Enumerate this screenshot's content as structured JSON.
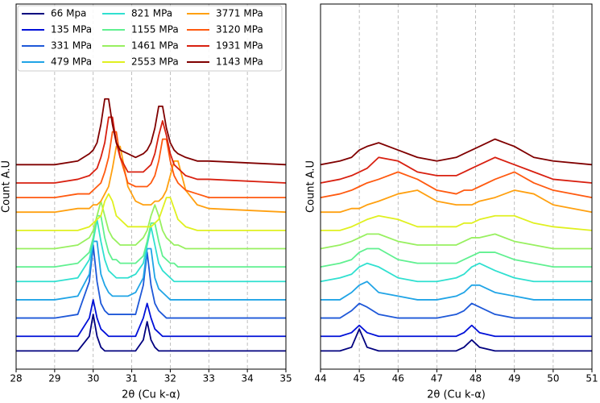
{
  "chart_data": [
    {
      "type": "line",
      "xlabel": "2θ (Cu k-α)",
      "ylabel": "Count A.U",
      "x": [
        28,
        29,
        29.6,
        29.9,
        30.0,
        30.1,
        30.2,
        30.3,
        30.4,
        30.5,
        30.6,
        30.7,
        30.9,
        31.1,
        31.3,
        31.4,
        31.5,
        31.6,
        31.7,
        31.8,
        31.9,
        32.0,
        32.1,
        32.2,
        32.4,
        32.7,
        33,
        35
      ],
      "xlim": [
        28,
        35
      ],
      "xticks": [
        28,
        29,
        30,
        31,
        32,
        33,
        34,
        35
      ],
      "ylim": [
        0,
        100
      ],
      "grid": "x",
      "legend": "upper left",
      "legend_columns": 3,
      "series": [
        {
          "name": "66 Mpa",
          "color": "#00007f",
          "values": [
            5,
            5,
            5,
            9,
            15,
            9,
            6,
            5,
            5,
            5,
            5,
            5,
            5,
            5,
            8,
            13,
            8,
            6,
            5,
            5,
            5,
            5,
            5,
            5,
            5,
            5,
            5,
            5
          ]
        },
        {
          "name": "135 MPa",
          "color": "#0010d8",
          "values": [
            9,
            9,
            9,
            14,
            19,
            14,
            11,
            10,
            9,
            9,
            9,
            9,
            9,
            9,
            14,
            18,
            14,
            11,
            10,
            9,
            9,
            9,
            9,
            9,
            9,
            9,
            9,
            9
          ]
        },
        {
          "name": "331 MPa",
          "color": "#1e58d8",
          "values": [
            14,
            14,
            15,
            24,
            34,
            24,
            18,
            16,
            15,
            15,
            15,
            15,
            15,
            15,
            23,
            32,
            23,
            18,
            16,
            15,
            14,
            14,
            14,
            14,
            14,
            14,
            14,
            14
          ]
        },
        {
          "name": "479 MPa",
          "color": "#20a4e6",
          "values": [
            19,
            19,
            20,
            26,
            35,
            35,
            26,
            23,
            21,
            20,
            20,
            20,
            20,
            21,
            25,
            33,
            33,
            25,
            22,
            21,
            20,
            19,
            19,
            19,
            19,
            19,
            19,
            19
          ]
        },
        {
          "name": "821 MPa",
          "color": "#30e0d0",
          "values": [
            24,
            24,
            25,
            30,
            35,
            41,
            35,
            30,
            27,
            26,
            25,
            25,
            25,
            26,
            29,
            34,
            39,
            34,
            29,
            27,
            26,
            25,
            24,
            24,
            24,
            24,
            24,
            24
          ]
        },
        {
          "name": "1155 MPa",
          "color": "#60f090",
          "values": [
            28,
            28,
            29,
            32,
            36,
            42,
            42,
            36,
            32,
            30,
            30,
            29,
            29,
            29,
            31,
            35,
            40,
            40,
            35,
            31,
            30,
            29,
            29,
            28,
            28,
            28,
            28,
            28
          ]
        },
        {
          "name": "1461 MPa",
          "color": "#98f060",
          "values": [
            33,
            33,
            34,
            36,
            38,
            42,
            46,
            42,
            38,
            36,
            35,
            34,
            34,
            34,
            36,
            38,
            42,
            45,
            42,
            38,
            36,
            35,
            34,
            34,
            33,
            33,
            33,
            33
          ]
        },
        {
          "name": "2553 MPa",
          "color": "#e0f020",
          "values": [
            38,
            38,
            38,
            39,
            40,
            41,
            42,
            46,
            48,
            46,
            42,
            41,
            39,
            39,
            39,
            39,
            39,
            40,
            41,
            44,
            47,
            47,
            44,
            41,
            39,
            38,
            38,
            38
          ]
        },
        {
          "name": "3771 MPa",
          "color": "#ffa010",
          "values": [
            43,
            43,
            44,
            44,
            45,
            45,
            46,
            48,
            50,
            55,
            61,
            61,
            50,
            46,
            45,
            45,
            45,
            46,
            46,
            47,
            49,
            53,
            57,
            57,
            49,
            45,
            44,
            43
          ]
        },
        {
          "name": "3120 MPa",
          "color": "#ff5a10",
          "values": [
            47,
            47,
            48,
            48,
            49,
            50,
            51,
            54,
            58,
            65,
            65,
            58,
            51,
            50,
            50,
            50,
            51,
            53,
            57,
            63,
            63,
            57,
            53,
            51,
            49,
            48,
            47,
            47
          ]
        },
        {
          "name": "1931 MPa",
          "color": "#d82010",
          "values": [
            51,
            51,
            52,
            53,
            54,
            55,
            58,
            62,
            69,
            69,
            62,
            58,
            54,
            54,
            54,
            55,
            56,
            59,
            64,
            68,
            64,
            59,
            56,
            55,
            53,
            52,
            52,
            51
          ]
        },
        {
          "name": "1143 MPa",
          "color": "#800000",
          "values": [
            56,
            56,
            57,
            59,
            60,
            62,
            67,
            74,
            74,
            67,
            62,
            60,
            59,
            58,
            59,
            60,
            62,
            66,
            72,
            72,
            66,
            62,
            60,
            59,
            58,
            57,
            57,
            56
          ]
        }
      ]
    },
    {
      "type": "line",
      "xlabel": "2θ (Cu k-α)",
      "ylabel": "Count A.U",
      "x": [
        44,
        44.5,
        44.8,
        45,
        45.2,
        45.5,
        46,
        46.5,
        47,
        47.5,
        47.7,
        47.9,
        48.1,
        48.5,
        49,
        49.5,
        50,
        51
      ],
      "xlim": [
        44,
        51
      ],
      "xticks": [
        44,
        45,
        46,
        47,
        48,
        49,
        50,
        51
      ],
      "ylim": [
        0,
        100
      ],
      "grid": "x",
      "series": [
        {
          "color": "#00007f",
          "values": [
            5,
            5,
            6,
            11,
            6,
            5,
            5,
            5,
            5,
            5,
            6,
            8,
            6,
            5,
            5,
            5,
            5,
            5
          ]
        },
        {
          "color": "#0010d8",
          "values": [
            9,
            9,
            10,
            12,
            10,
            9,
            9,
            9,
            9,
            9,
            10,
            12,
            10,
            9,
            9,
            9,
            9,
            9
          ]
        },
        {
          "color": "#1e58d8",
          "values": [
            14,
            14,
            16,
            18,
            17,
            15,
            14,
            14,
            14,
            15,
            16,
            18,
            17,
            15,
            14,
            14,
            14,
            14
          ]
        },
        {
          "color": "#20a4e6",
          "values": [
            19,
            19,
            21,
            23,
            24,
            21,
            20,
            19,
            19,
            20,
            21,
            23,
            23,
            21,
            20,
            19,
            19,
            19
          ]
        },
        {
          "color": "#30e0d0",
          "values": [
            24,
            25,
            26,
            28,
            29,
            28,
            25,
            24,
            24,
            25,
            26,
            28,
            29,
            27,
            25,
            24,
            24,
            24
          ]
        },
        {
          "color": "#60f090",
          "values": [
            28,
            29,
            30,
            32,
            33,
            33,
            30,
            29,
            29,
            29,
            30,
            31,
            32,
            32,
            30,
            29,
            28,
            28
          ]
        },
        {
          "color": "#98f060",
          "values": [
            33,
            34,
            35,
            36,
            37,
            37,
            35,
            34,
            34,
            34,
            35,
            36,
            36,
            37,
            35,
            34,
            33,
            33
          ]
        },
        {
          "color": "#e0f020",
          "values": [
            38,
            38,
            39,
            40,
            41,
            42,
            41,
            39,
            39,
            39,
            40,
            40,
            41,
            42,
            42,
            40,
            39,
            38
          ]
        },
        {
          "color": "#ffa010",
          "values": [
            43,
            43,
            44,
            44,
            45,
            46,
            48,
            49,
            46,
            45,
            45,
            45,
            46,
            47,
            49,
            48,
            45,
            43
          ]
        },
        {
          "color": "#ff5a10",
          "values": [
            47,
            48,
            49,
            50,
            51,
            52,
            54,
            52,
            49,
            48,
            49,
            49,
            50,
            52,
            54,
            51,
            49,
            47
          ]
        },
        {
          "color": "#d82010",
          "values": [
            51,
            52,
            53,
            54,
            55,
            58,
            57,
            54,
            53,
            53,
            54,
            55,
            56,
            58,
            56,
            54,
            52,
            51
          ]
        },
        {
          "color": "#800000",
          "values": [
            56,
            57,
            58,
            60,
            61,
            62,
            60,
            58,
            57,
            58,
            59,
            60,
            61,
            63,
            61,
            58,
            57,
            56
          ]
        }
      ]
    }
  ]
}
